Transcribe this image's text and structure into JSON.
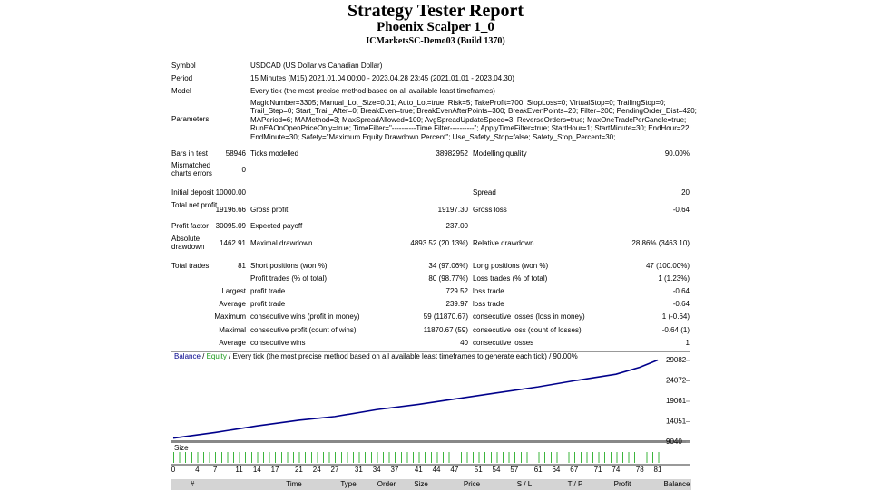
{
  "header": {
    "title": "Strategy Tester Report",
    "subtitle": "Phoenix Scalper 1_0",
    "server": "ICMarketsSC-Demo03 (Build 1370)"
  },
  "info": [
    [
      "Symbol",
      "USDCAD (US Dollar vs Canadian Dollar)"
    ],
    [
      "Period",
      "15 Minutes (M15) 2021.01.04 00:00 - 2023.04.28 23:45 (2021.01.01 - 2023.04.30)"
    ],
    [
      "Model",
      "Every tick (the most precise method based on all available least timeframes)"
    ],
    [
      "Parameters",
      "MagicNumber=3305; Manual_Lot_Size=0.01; Auto_Lot=true; Risk=5; TakeProfit=700; StopLoss=0; VirtualStop=0; TrailingStop=0; Trail_Step=0; Start_Trail_After=0; BreakEven=true; BreakEvenAfterPoints=300; BreakEvenPoints=20; Filter=200; PendingOrder_Dist=420; MAPeriod=6; MAMethod=3; MaxSpreadAllowed=100; AvgSpreadUpdateSpeed=3; ReverseOrders=true; MaxOneTradePerCandle=true; RunEAOnOpenPriceOnly=true; TimeFilter=\"----------Time Filter----------\"; ApplyTimeFilter=true; StartHour=1; StartMinute=30; EndHour=22; EndMinute=30; Safety=\"Maximum Equity Drawdown Percent\"; Use_Safety_Stop=false; Safety_Stop_Percent=30;"
    ]
  ],
  "stats": [
    [
      "Bars in test",
      "58946",
      "Ticks modelled",
      "38982952",
      "Modelling quality",
      "90.00%"
    ],
    [
      "Mismatched charts errors",
      "0",
      null,
      null,
      null,
      null
    ],
    [
      "Initial deposit",
      "10000.00",
      null,
      null,
      "Spread",
      "20"
    ],
    [
      "Total net profit",
      "19196.66",
      "Gross profit",
      "19197.30",
      "Gross loss",
      "-0.64"
    ],
    [
      "Profit factor",
      "30095.09",
      "Expected payoff",
      "237.00",
      null,
      null
    ],
    [
      "Absolute drawdown",
      "1462.91",
      "Maximal drawdown",
      "4893.52 (20.13%)",
      "Relative drawdown",
      "28.86% (3463.10)"
    ],
    [
      "Total trades",
      "81",
      "Short positions (won %)",
      "34 (97.06%)",
      "Long positions (won %)",
      "47 (100.00%)"
    ],
    [
      null,
      null,
      "Profit trades (% of total)",
      "80 (98.77%)",
      "Loss trades (% of total)",
      "1 (1.23%)"
    ],
    [
      null,
      "Largest",
      "profit trade",
      "729.52",
      "loss trade",
      "-0.64"
    ],
    [
      null,
      "Average",
      "profit trade",
      "239.97",
      "loss trade",
      "-0.64"
    ],
    [
      null,
      "Maximum",
      "consecutive wins (profit in money)",
      "59 (11870.67)",
      "consecutive losses (loss in money)",
      "1 (-0.64)"
    ],
    [
      null,
      "Maximal",
      "consecutive profit (count of wins)",
      "11870.67 (59)",
      "consecutive loss (count of losses)",
      "-0.64 (1)"
    ],
    [
      null,
      "Average",
      "consecutive wins",
      "40",
      "consecutive losses",
      "1"
    ]
  ],
  "chart_data": {
    "type": "line",
    "legend": [
      "Balance",
      "Equity"
    ],
    "caption": "Every tick (the most precise method based on all available least timeframes to generate each tick) / 90.00%",
    "size_label": "Size",
    "x": [
      0,
      7,
      14,
      21,
      27,
      34,
      41,
      47,
      54,
      61,
      67,
      74,
      78,
      81
    ],
    "series": [
      {
        "name": "Balance",
        "color": "#00008b",
        "values": [
          10000,
          11400,
          13000,
          14400,
          15300,
          17000,
          18300,
          19600,
          21100,
          22600,
          24100,
          25700,
          27400,
          29197
        ]
      }
    ],
    "xlim": [
      0,
      81
    ],
    "xticks": [
      0,
      4,
      7,
      11,
      14,
      17,
      21,
      24,
      27,
      31,
      34,
      37,
      41,
      44,
      47,
      51,
      54,
      57,
      61,
      64,
      67,
      71,
      74,
      78,
      81
    ],
    "ylim": [
      9040,
      29082
    ],
    "yticks": [
      9040,
      14051,
      19061,
      24072,
      29082
    ]
  },
  "trades_header": [
    "#",
    "Time",
    "Type",
    "Order",
    "Size",
    "Price",
    "S / L",
    "T / P",
    "Profit",
    "Balance"
  ]
}
